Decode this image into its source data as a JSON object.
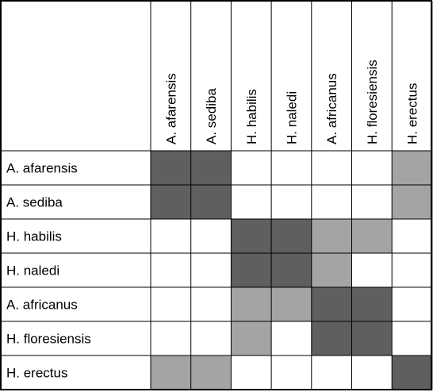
{
  "chart_data": {
    "type": "heatmap",
    "title": "",
    "column_labels": [
      "A. afarensis",
      "A. sediba",
      "H. habilis",
      "H. naledi",
      "A. africanus",
      "H. floresiensis",
      "H. erectus"
    ],
    "row_labels": [
      "A. afarensis",
      "A. sediba",
      "H. habilis",
      "H. naledi",
      "A. africanus",
      "H. floresiensis",
      "H. erectus"
    ],
    "values": [
      [
        2,
        2,
        0,
        0,
        0,
        0,
        1
      ],
      [
        2,
        2,
        0,
        0,
        0,
        0,
        1
      ],
      [
        0,
        0,
        2,
        2,
        1,
        1,
        0
      ],
      [
        0,
        0,
        2,
        2,
        1,
        0,
        0
      ],
      [
        0,
        0,
        1,
        1,
        2,
        2,
        0
      ],
      [
        0,
        0,
        1,
        0,
        2,
        2,
        0
      ],
      [
        1,
        1,
        0,
        0,
        0,
        0,
        2
      ]
    ],
    "level_colors": [
      "#ffffff",
      "#a4a4a4",
      "#5f5f5f"
    ]
  }
}
